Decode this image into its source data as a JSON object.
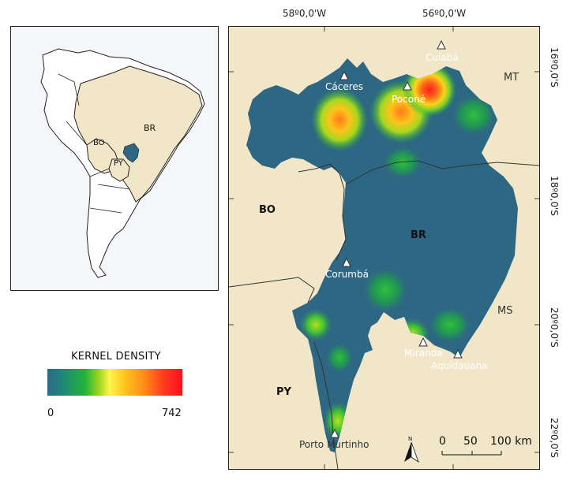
{
  "inset": {
    "labels": {
      "br": "BR",
      "bo": "BO",
      "py": "PY"
    }
  },
  "main": {
    "coords_top": [
      "58º0,0'W",
      "56º0,0'W"
    ],
    "coords_right": [
      "16º0,0'S",
      "18º0,0'S",
      "20º0,0'S",
      "22º0,0'S"
    ],
    "country_labels": {
      "bo": "BO",
      "br": "BR",
      "py": "PY"
    },
    "state_labels": {
      "mt": "MT",
      "ms": "MS"
    },
    "cities": [
      {
        "name": "Cuiabá"
      },
      {
        "name": "Cáceres"
      },
      {
        "name": "Poconé"
      },
      {
        "name": "Corumbá"
      },
      {
        "name": "Miranda"
      },
      {
        "name": "Aquidauana"
      },
      {
        "name": "Porto Murtinho"
      }
    ],
    "north_arrow_label": "N",
    "scale_labels": [
      "0",
      "50",
      "100 km"
    ]
  },
  "legend": {
    "title": "KERNEL DENSITY",
    "min": "0",
    "max": "742",
    "colors": [
      "#2b6a8d",
      "#22b33a",
      "#fff44a",
      "#ff8a1a",
      "#ff0f1e"
    ]
  },
  "colors": {
    "region": "#2d6783",
    "land": "#f1e6c8",
    "inset_br": "#f1e6c8",
    "inset_region": "#2d6783"
  }
}
